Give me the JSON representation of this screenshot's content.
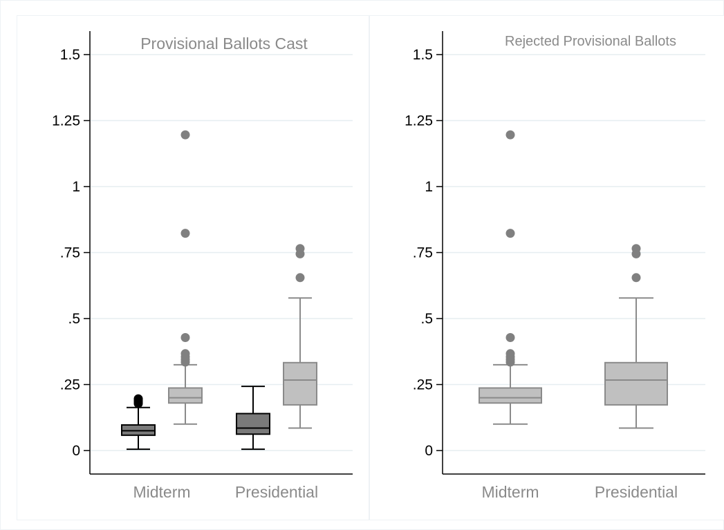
{
  "chart_data": [
    {
      "type": "box",
      "title": "Provisional Ballots Cast",
      "categories": [
        "Midterm",
        "Presidential"
      ],
      "ylim": [
        -0.09,
        1.56
      ],
      "yticks": [
        {
          "value": 0,
          "label": "0"
        },
        {
          "value": 0.25,
          "label": ".25"
        },
        {
          "value": 0.5,
          "label": ".5"
        },
        {
          "value": 0.75,
          "label": ".75"
        },
        {
          "value": 1,
          "label": "1"
        },
        {
          "value": 1.25,
          "label": "1.25"
        },
        {
          "value": 1.5,
          "label": "1.5"
        }
      ],
      "grid": true,
      "boxes": [
        {
          "category": "Midterm",
          "group": "dark",
          "fill": "#7a7a7a",
          "stroke": "#000000",
          "whisker_low": 0.005,
          "q1": 0.058,
          "median": 0.075,
          "q3": 0.097,
          "whisker_high": 0.163,
          "outliers": [
            0.178,
            0.184,
            0.19,
            0.196
          ]
        },
        {
          "category": "Midterm",
          "group": "light",
          "fill": "#c0c0c0",
          "stroke": "#8a8a8a",
          "whisker_low": 0.1,
          "q1": 0.18,
          "median": 0.2,
          "q3": 0.237,
          "whisker_high": 0.325,
          "outliers": [
            0.335,
            0.345,
            0.355,
            0.367,
            0.428,
            0.823,
            1.196
          ]
        },
        {
          "category": "Presidential",
          "group": "dark",
          "fill": "#7a7a7a",
          "stroke": "#000000",
          "whisker_low": 0.005,
          "q1": 0.062,
          "median": 0.085,
          "q3": 0.14,
          "whisker_high": 0.243,
          "outliers": []
        },
        {
          "category": "Presidential",
          "group": "light",
          "fill": "#c0c0c0",
          "stroke": "#8a8a8a",
          "whisker_low": 0.085,
          "q1": 0.173,
          "median": 0.267,
          "q3": 0.333,
          "whisker_high": 0.578,
          "outliers": [
            0.655,
            0.745,
            0.765
          ]
        }
      ]
    },
    {
      "type": "box",
      "title": "Rejected Provisional Ballots",
      "categories": [
        "Midterm",
        "Presidential"
      ],
      "ylim": [
        -0.09,
        1.56
      ],
      "yticks": [
        {
          "value": 0,
          "label": "0"
        },
        {
          "value": 0.25,
          "label": ".25"
        },
        {
          "value": 0.5,
          "label": ".5"
        },
        {
          "value": 0.75,
          "label": ".75"
        },
        {
          "value": 1,
          "label": "1"
        },
        {
          "value": 1.25,
          "label": "1.25"
        },
        {
          "value": 1.5,
          "label": "1.5"
        }
      ],
      "grid": true,
      "boxes": [
        {
          "category": "Midterm",
          "group": "light",
          "fill": "#c0c0c0",
          "stroke": "#8a8a8a",
          "whisker_low": 0.1,
          "q1": 0.18,
          "median": 0.2,
          "q3": 0.237,
          "whisker_high": 0.325,
          "outliers": [
            0.335,
            0.345,
            0.355,
            0.367,
            0.428,
            0.823,
            1.196
          ]
        },
        {
          "category": "Presidential",
          "group": "light",
          "fill": "#c0c0c0",
          "stroke": "#8a8a8a",
          "whisker_low": 0.085,
          "q1": 0.173,
          "median": 0.267,
          "q3": 0.333,
          "whisker_high": 0.578,
          "outliers": [
            0.655,
            0.745,
            0.765
          ]
        }
      ]
    }
  ]
}
